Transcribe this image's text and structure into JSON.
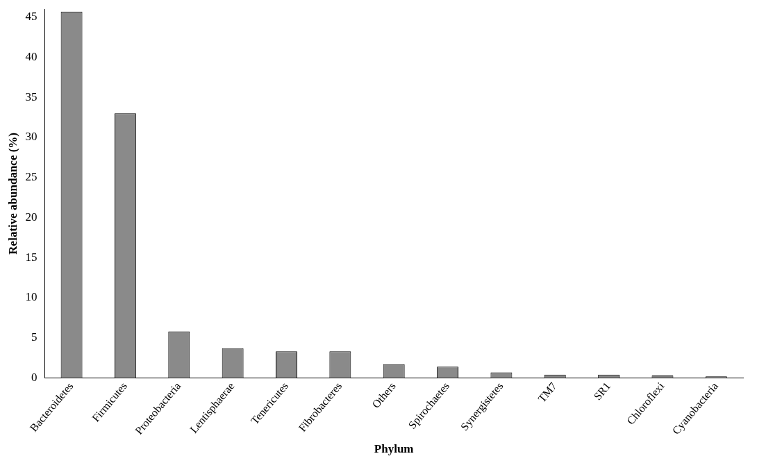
{
  "chart_data": {
    "type": "bar",
    "xlabel": "Phylum",
    "ylabel": "Relative abundance (%)",
    "categories": [
      "Bacteroidetes",
      "Firmicutes",
      "Proteobacteria",
      "Lentisphaerae",
      "Tenericutes",
      "Fibrobacteres",
      "Others",
      "Spirochaetes",
      "Synergistetes",
      "TM7",
      "SR1",
      "Chloroflexi",
      "Cyanobacteria"
    ],
    "values": [
      45.7,
      33,
      5.8,
      3.7,
      3.3,
      3.3,
      1.7,
      1.4,
      0.7,
      0.4,
      0.4,
      0.3,
      0.2
    ],
    "color": "#8a8a8a",
    "ylim": [
      0,
      46
    ],
    "yticks": [
      0,
      5,
      10,
      15,
      20,
      25,
      30,
      35,
      40,
      45
    ],
    "grid": false,
    "legend": false
  }
}
